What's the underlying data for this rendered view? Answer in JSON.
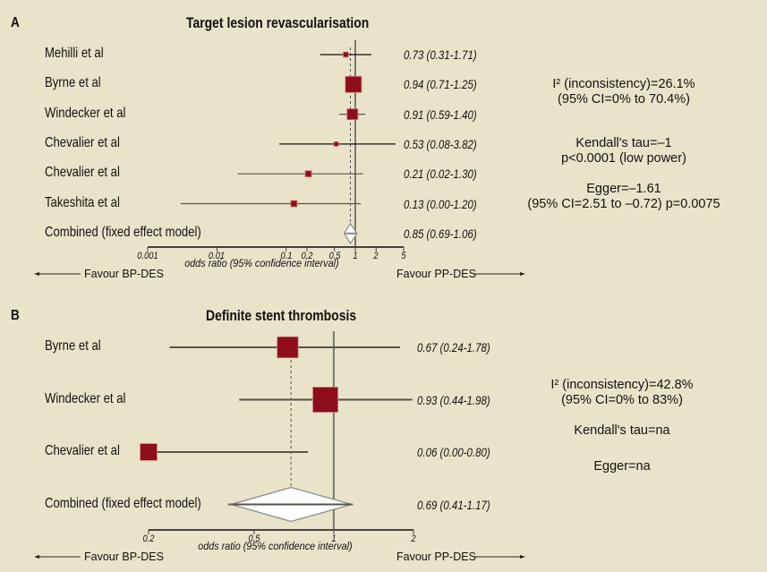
{
  "chart_data": [
    {
      "type": "forest",
      "panel": "A",
      "title": "Target lesion revascularisation",
      "xlabel": "odds ratio (95% confidence interval)",
      "xscale": "log",
      "xlim": [
        0.001,
        5
      ],
      "ticks": [
        0.001,
        0.01,
        0.1,
        0.2,
        0.5,
        1,
        2,
        5
      ],
      "tick_labels": [
        "0.001",
        "0.01",
        "0.1",
        "0.2",
        "0.5",
        "1",
        "2",
        "5"
      ],
      "favour_left": "Favour BP-DES",
      "favour_right": "Favour PP-DES",
      "studies": [
        {
          "name": "Mehilli et al",
          "or": 0.73,
          "lo": 0.31,
          "hi": 1.71,
          "label": "0.73 (0.31-1.71)",
          "weight": 0.1
        },
        {
          "name": "Byrne et al",
          "or": 0.94,
          "lo": 0.71,
          "hi": 1.25,
          "label": "0.94 (0.71-1.25)",
          "weight": 1.0
        },
        {
          "name": "Windecker et al",
          "or": 0.91,
          "lo": 0.59,
          "hi": 1.4,
          "label": "0.91 (0.59-1.40)",
          "weight": 0.45
        },
        {
          "name": "Chevalier et al",
          "or": 0.53,
          "lo": 0.08,
          "hi": 3.82,
          "label": "0.53 (0.08-3.82)",
          "weight": 0.08
        },
        {
          "name": "Chevalier et al",
          "or": 0.21,
          "lo": 0.02,
          "hi": 1.3,
          "label": "0.21 (0.02-1.30)",
          "weight": 0.15
        },
        {
          "name": "Takeshita et al",
          "or": 0.13,
          "lo": 0.003,
          "hi": 1.2,
          "label": "0.13 (0.00-1.20)",
          "weight": 0.15
        }
      ],
      "combined": {
        "name": "Combined (fixed effect model)",
        "or": 0.85,
        "lo": 0.69,
        "hi": 1.06,
        "label": "0.85 (0.69-1.06)"
      },
      "stats": [
        [
          "I² (inconsistency)=26.1%",
          "(95% CI=0% to 70.4%)"
        ],
        [
          "Kendall's tau=–1",
          "p<0.0001 (low power)"
        ],
        [
          "Egger=–1.61",
          "(95% CI=2.51 to –0.72) p=0.0075"
        ]
      ]
    },
    {
      "type": "forest",
      "panel": "B",
      "title": "Definite stent thrombosis",
      "xlabel": "odds ratio (95% confidence interval)",
      "xscale": "log",
      "xlim": [
        0.2,
        2
      ],
      "ticks": [
        0.2,
        0.5,
        1,
        2
      ],
      "tick_labels": [
        "0.2",
        "0.5",
        "1",
        "2"
      ],
      "favour_left": "Favour BP-DES",
      "favour_right": "Favour PP-DES",
      "studies": [
        {
          "name": "Byrne et al",
          "or": 0.67,
          "lo": 0.24,
          "hi": 1.78,
          "label": "0.67 (0.24-1.78)",
          "weight": 0.7
        },
        {
          "name": "Windecker et al",
          "or": 0.93,
          "lo": 0.44,
          "hi": 1.98,
          "label": "0.93 (0.44-1.98)",
          "weight": 1.0
        },
        {
          "name": "Chevalier et al",
          "or": 0.06,
          "lo": 0.0,
          "hi": 0.8,
          "label": "0.06 (0.00-0.80)",
          "weight": 0.45
        }
      ],
      "combined": {
        "name": "Combined (fixed effect model)",
        "or": 0.69,
        "lo": 0.41,
        "hi": 1.17,
        "label": "0.69 (0.41-1.17)"
      },
      "stats": [
        [
          "I² (inconsistency)=42.8%",
          "(95% CI=0% to 83%)"
        ],
        [
          "Kendall's tau=na"
        ],
        [
          "Egger=na"
        ]
      ]
    }
  ],
  "colors": {
    "background": "#e9e4c9",
    "marker": "#8e0e1c",
    "line": "#55554a"
  }
}
